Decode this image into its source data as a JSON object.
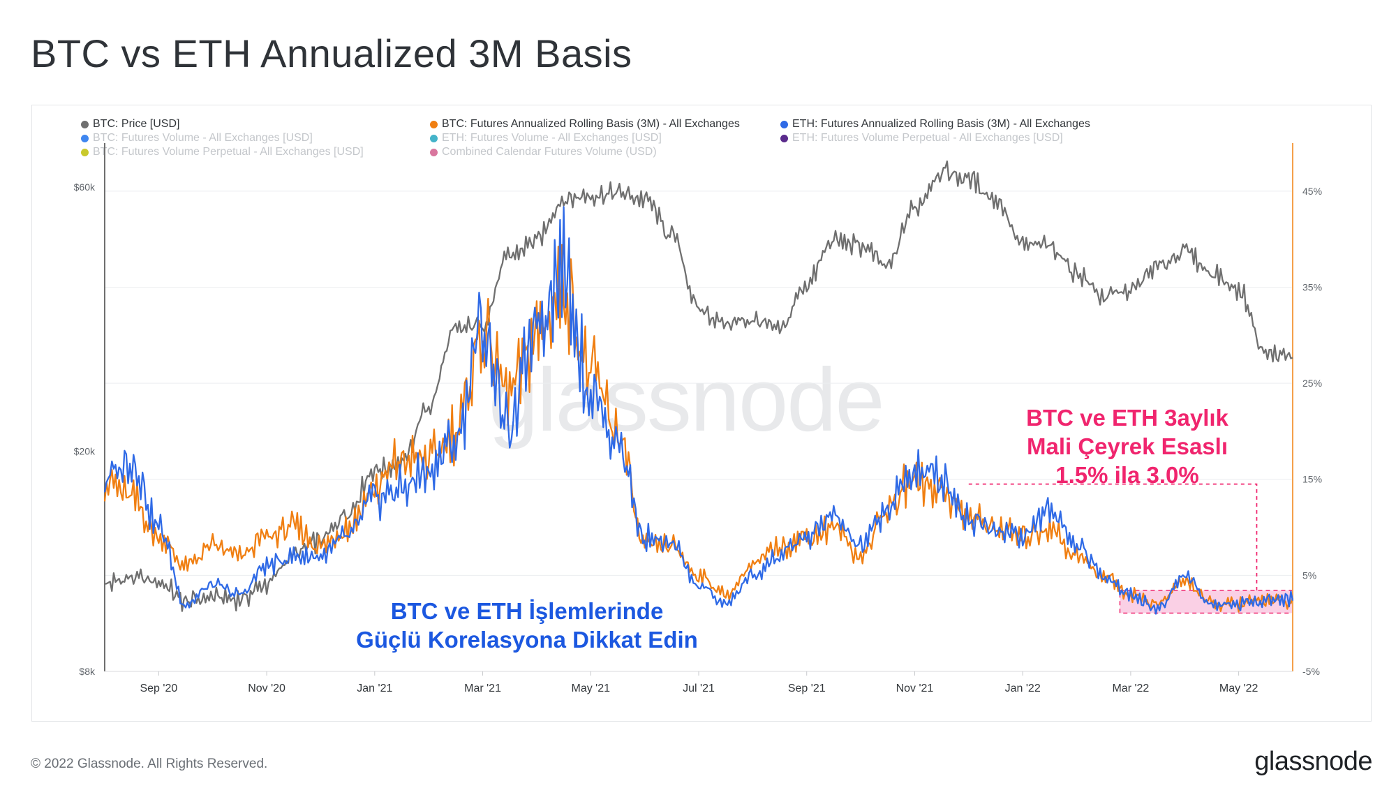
{
  "title": "BTC vs ETH Annualized 3M Basis",
  "footer": {
    "copyright": "© 2022 Glassnode. All Rights Reserved.",
    "logo": "glassnode"
  },
  "watermark": "glassnode",
  "colors": {
    "btc_price": "#6f6f6f",
    "btc_basis": "#f07f12",
    "eth_basis": "#2f6ae6",
    "right_axis": "#f5a04a",
    "annotation_blue": "#1c58e0",
    "annotation_red": "#f0256e",
    "band_fill": "#f9c4df"
  },
  "legend": [
    {
      "label": "BTC: Price [USD]",
      "color": "#6f6f6f",
      "active": true
    },
    {
      "label": "BTC: Futures Annualized Rolling Basis (3M) - All Exchanges",
      "color": "#f07f12",
      "active": true
    },
    {
      "label": "ETH: Futures Annualized Rolling Basis (3M) - All Exchanges",
      "color": "#2f6ae6",
      "active": true
    },
    {
      "label": "BTC: Futures Volume - All Exchanges [USD]",
      "color": "#3f86f0",
      "active": false
    },
    {
      "label": "ETH: Futures Volume - All Exchanges [USD]",
      "color": "#44b3c9",
      "active": false
    },
    {
      "label": "ETH: Futures Volume Perpetual - All Exchanges [USD]",
      "color": "#5a2b8c",
      "active": false
    },
    {
      "label": "BTC: Futures Volume Perpetual - All Exchanges [USD]",
      "color": "#c9c92c",
      "active": false
    },
    {
      "label": "Combined Calendar Futures Volume (USD)",
      "color": "#d9769e",
      "active": false
    }
  ],
  "annotations": {
    "blue_line1": "BTC ve ETH İşlemlerinde",
    "blue_line2": "Güçlü Korelasyona Dikkat Edin",
    "red_line1": "BTC ve ETH 3aylık",
    "red_line2": "Mali Çeyrek Esaslı",
    "red_line3": "1.5% ila 3.0%"
  },
  "chart_data": {
    "type": "line",
    "x_axis": {
      "start": "2020-08-01",
      "end": "2022-05-31",
      "tick_labels": [
        "Sep '20",
        "Nov '20",
        "Jan '21",
        "Mar '21",
        "May '21",
        "Jul '21",
        "Sep '21",
        "Nov '21",
        "Jan '22",
        "Mar '22",
        "May '22"
      ],
      "tick_months": [
        1,
        3,
        5,
        7,
        9,
        11,
        13,
        15,
        17,
        19,
        21
      ]
    },
    "y_left": {
      "scale": "log",
      "range": [
        8000,
        72000
      ],
      "ticks": [
        8000,
        20000,
        60000
      ],
      "tick_labels": [
        "$8k",
        "$20k",
        "$60k"
      ]
    },
    "y_right": {
      "range": [
        -5,
        50
      ],
      "ticks": [
        -5,
        5,
        15,
        25,
        35,
        45
      ],
      "tick_labels": [
        "-5%",
        "5%",
        "15%",
        "25%",
        "35%",
        "45%"
      ]
    },
    "highlight_band": {
      "from": "2022-02-25",
      "to": "2022-05-31",
      "y_range": [
        1.5,
        3.0
      ]
    },
    "marker_line": {
      "from": "2021-12-01",
      "to": "2022-05-11",
      "level": 14.5
    },
    "series": [
      {
        "name": "BTC: Price [USD]",
        "axis": "left",
        "months": [
          0,
          0.5,
          1,
          1.5,
          2,
          2.5,
          3,
          3.5,
          4,
          4.5,
          5,
          5.5,
          6,
          6.5,
          7,
          7.5,
          8,
          8.5,
          9,
          9.5,
          10,
          10.5,
          11,
          11.5,
          12,
          12.5,
          13,
          13.5,
          14,
          14.5,
          15,
          15.5,
          16,
          16.5,
          17,
          17.5,
          18,
          18.5,
          19,
          19.5,
          20,
          20.5,
          21,
          21.5,
          22
        ],
        "values": [
          11500,
          11800,
          11600,
          10700,
          10900,
          10800,
          11500,
          13000,
          13800,
          15500,
          18500,
          19000,
          24000,
          33000,
          34000,
          45000,
          48000,
          57000,
          58000,
          58500,
          57000,
          49000,
          36000,
          34000,
          34500,
          33000,
          40000,
          48000,
          47000,
          43000,
          55000,
          64000,
          62000,
          57000,
          47000,
          47000,
          42000,
          38000,
          39000,
          43000,
          46000,
          42000,
          39000,
          30000,
          29500
        ]
      },
      {
        "name": "BTC: Futures Annualized Rolling Basis (3M) - All Exchanges",
        "axis": "right",
        "months": [
          0,
          0.5,
          1,
          1.5,
          2,
          2.5,
          3,
          3.5,
          4,
          4.5,
          5,
          5.5,
          6,
          6.5,
          7,
          7.5,
          8,
          8.5,
          9,
          9.5,
          10,
          10.5,
          11,
          11.5,
          12,
          12.5,
          13,
          13.5,
          14,
          14.5,
          15,
          15.5,
          16,
          16.5,
          17,
          17.5,
          18,
          18.5,
          19,
          19.5,
          20,
          20.5,
          21,
          21.5,
          22
        ],
        "values": [
          15,
          13,
          9,
          6,
          8,
          7,
          9,
          10,
          8,
          10,
          14,
          17,
          17,
          20,
          30,
          24,
          30,
          35,
          26,
          20,
          8,
          8,
          5,
          3,
          6,
          8,
          9,
          10,
          7,
          12,
          15,
          14,
          11,
          10,
          9,
          10,
          7,
          5,
          3,
          2,
          4.5,
          2,
          2,
          2.5,
          2.2
        ]
      },
      {
        "name": "ETH: Futures Annualized Rolling Basis (3M) - All Exchanges",
        "axis": "right",
        "months": [
          0,
          0.5,
          1,
          1.5,
          2,
          2.5,
          3,
          3.5,
          4,
          4.5,
          5,
          5.5,
          6,
          6.5,
          7,
          7.5,
          8,
          8.5,
          9,
          9.5,
          10,
          10.5,
          11,
          11.5,
          12,
          12.5,
          13,
          13.5,
          14,
          14.5,
          15,
          15.5,
          16,
          16.5,
          17,
          17.5,
          18,
          18.5,
          19,
          19.5,
          20,
          20.5,
          21,
          21.5,
          22
        ],
        "values": [
          15,
          17,
          10,
          2,
          4,
          3,
          6,
          7,
          7,
          9,
          13,
          14,
          16,
          19,
          31,
          20,
          32,
          37,
          24,
          19,
          9,
          8,
          4,
          2,
          5,
          7,
          9,
          11,
          8,
          12,
          16,
          15,
          11,
          10,
          9,
          12,
          8,
          5,
          3,
          1.5,
          5,
          2,
          2,
          2.5,
          2.5
        ]
      }
    ]
  }
}
